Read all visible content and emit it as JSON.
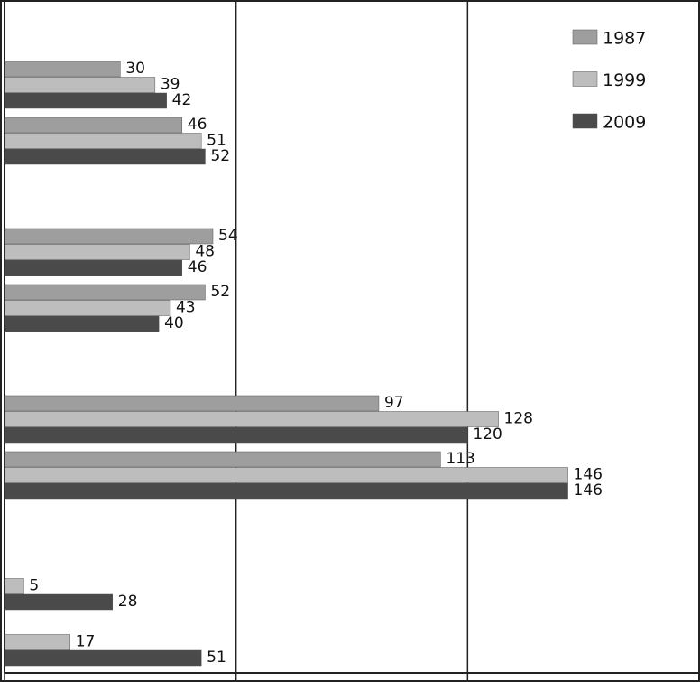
{
  "chart_data": {
    "type": "bar",
    "orientation": "horizontal",
    "categories": [
      null,
      null,
      null,
      null,
      null,
      null,
      null,
      null
    ],
    "series": [
      {
        "name": "1987",
        "color": "#9e9e9e",
        "values": [
          30,
          46,
          54,
          52,
          97,
          113,
          null,
          null
        ]
      },
      {
        "name": "1999",
        "color": "#bdbdbd",
        "values": [
          39,
          51,
          48,
          43,
          128,
          146,
          5,
          17
        ]
      },
      {
        "name": "2009",
        "color": "#4a4a4a",
        "values": [
          42,
          52,
          46,
          40,
          120,
          146,
          28,
          51
        ]
      }
    ],
    "xlim": [
      0,
      180
    ],
    "xticks": [
      0,
      60,
      120,
      180
    ],
    "grid": true,
    "legend": "upper right"
  }
}
